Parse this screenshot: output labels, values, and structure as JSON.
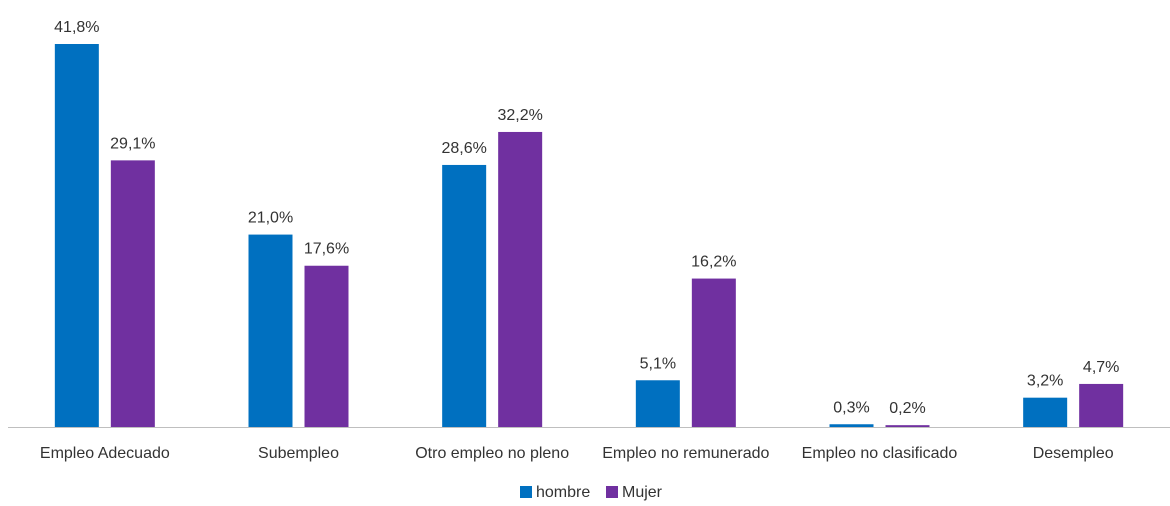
{
  "chart_data": {
    "type": "bar",
    "title": "",
    "xlabel": "",
    "ylabel": "",
    "ylim": [
      0,
      44
    ],
    "grid": false,
    "legend_position": "bottom",
    "categories": [
      "Empleo Adecuado",
      "Subempleo",
      "Otro empleo no pleno",
      "Empleo no remunerado",
      "Empleo no clasificado",
      "Desempleo"
    ],
    "series": [
      {
        "name": "hombre",
        "color": "#0070C0",
        "values": [
          41.8,
          21.0,
          28.6,
          5.1,
          0.3,
          3.2
        ],
        "labels": [
          "41,8%",
          "21,0%",
          "28,6%",
          "5,1%",
          "0,3%",
          "3,2%"
        ]
      },
      {
        "name": "Mujer",
        "color": "#7030A0",
        "values": [
          29.1,
          17.6,
          32.2,
          16.2,
          0.2,
          4.7
        ],
        "labels": [
          "29,1%",
          "17,6%",
          "32,2%",
          "16,2%",
          "0,2%",
          "4,7%"
        ]
      }
    ]
  }
}
